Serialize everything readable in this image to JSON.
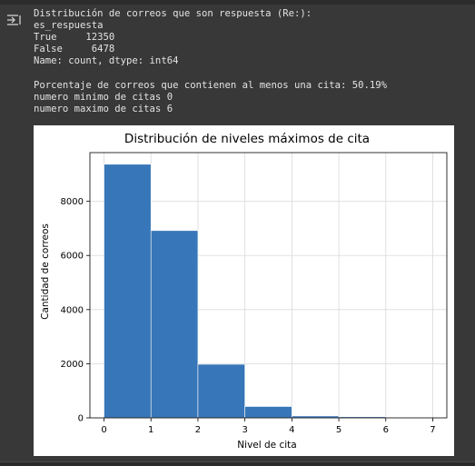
{
  "output": {
    "lines": [
      "Distribución de correos que son respuesta (Re:):",
      "es_respuesta",
      "True     12350",
      "False     6478",
      "Name: count, dtype: int64",
      "",
      "Porcentaje de correos que contienen al menos una cita: 50.19%",
      "numero minimo de citas 0",
      "numero maximo de citas 6"
    ]
  },
  "chart_data": {
    "type": "bar",
    "title": "Distribución de niveles máximos de cita",
    "xlabel": "Nivel de cita",
    "ylabel": "Cantidad de correos",
    "bins": [
      [
        0,
        1
      ],
      [
        1,
        2
      ],
      [
        2,
        3
      ],
      [
        3,
        4
      ],
      [
        4,
        5
      ],
      [
        5,
        6
      ],
      [
        6,
        7
      ]
    ],
    "values": [
      9370,
      6920,
      1980,
      420,
      70,
      40,
      5
    ],
    "xlim": [
      -0.3,
      7.3
    ],
    "ylim": [
      0,
      9800
    ],
    "xticks": [
      "0",
      "1",
      "2",
      "3",
      "4",
      "5",
      "6",
      "7"
    ],
    "yticks": [
      "0",
      "2000",
      "4000",
      "6000",
      "8000"
    ],
    "grid": true,
    "colors": {
      "bar": "#3776b8",
      "bar_edge": "#ffffff",
      "grid": "#d9d9d9"
    }
  }
}
